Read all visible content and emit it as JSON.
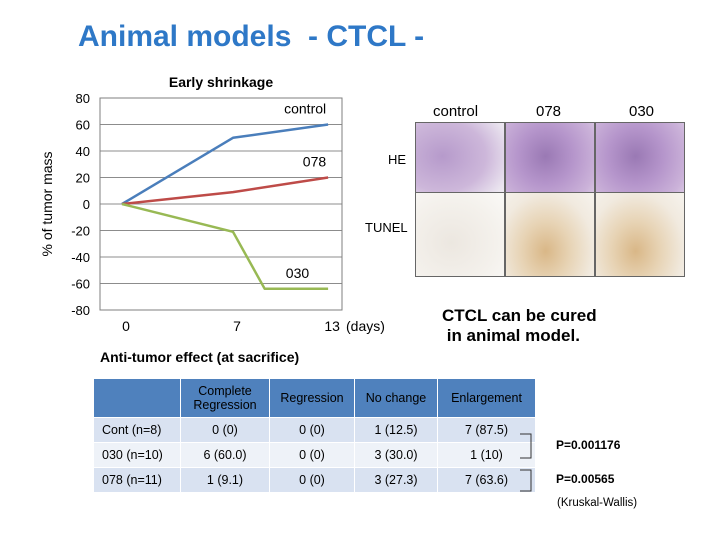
{
  "slide_title": "Animal models  - CTCL -",
  "chart_data": {
    "type": "line",
    "title": "Early shrinkage",
    "ylabel": "% of tumor mass",
    "xunit": "(days)",
    "ylim": [
      -80,
      80
    ],
    "yticks": [
      "80",
      "60",
      "40",
      "20",
      "0",
      "-20",
      "-40",
      "-60",
      "-80"
    ],
    "xticks": [
      "0",
      "7",
      "13"
    ],
    "series": [
      {
        "name": "control",
        "color": "#4a7ebb",
        "points": [
          [
            0,
            0
          ],
          [
            7,
            50
          ],
          [
            13,
            60
          ]
        ]
      },
      {
        "name": "078",
        "color": "#be4b48",
        "points": [
          [
            0,
            0
          ],
          [
            7,
            9
          ],
          [
            13,
            20
          ]
        ]
      },
      {
        "name": "030",
        "color": "#98b954",
        "points": [
          [
            0,
            0
          ],
          [
            7,
            -21
          ],
          [
            9,
            -64
          ],
          [
            13,
            -64
          ]
        ]
      }
    ]
  },
  "histology": {
    "columns": [
      "control",
      "078",
      "030"
    ],
    "rows": [
      "HE",
      "TUNEL"
    ]
  },
  "conclusion": "CTCL can be cured\n in animal model.",
  "table": {
    "title": "Anti-tumor effect (at sacrifice)",
    "headers": [
      "",
      "Complete Regression",
      "Regression",
      "No change",
      "Enlargement"
    ],
    "rows": [
      [
        "Cont (n=8)",
        "0 (0)",
        "0 (0)",
        "1 (12.5)",
        "7 (87.5)"
      ],
      [
        "030 (n=10)",
        "6 (60.0)",
        "0 (0)",
        "3 (30.0)",
        "1 (10)"
      ],
      [
        "078 (n=11)",
        "1 (9.1)",
        "0 (0)",
        "3 (27.3)",
        "7 (63.6)"
      ]
    ]
  },
  "pvalues": [
    "P=0.001176",
    "P=0.00565"
  ],
  "test_label": "(Kruskal-Wallis)"
}
